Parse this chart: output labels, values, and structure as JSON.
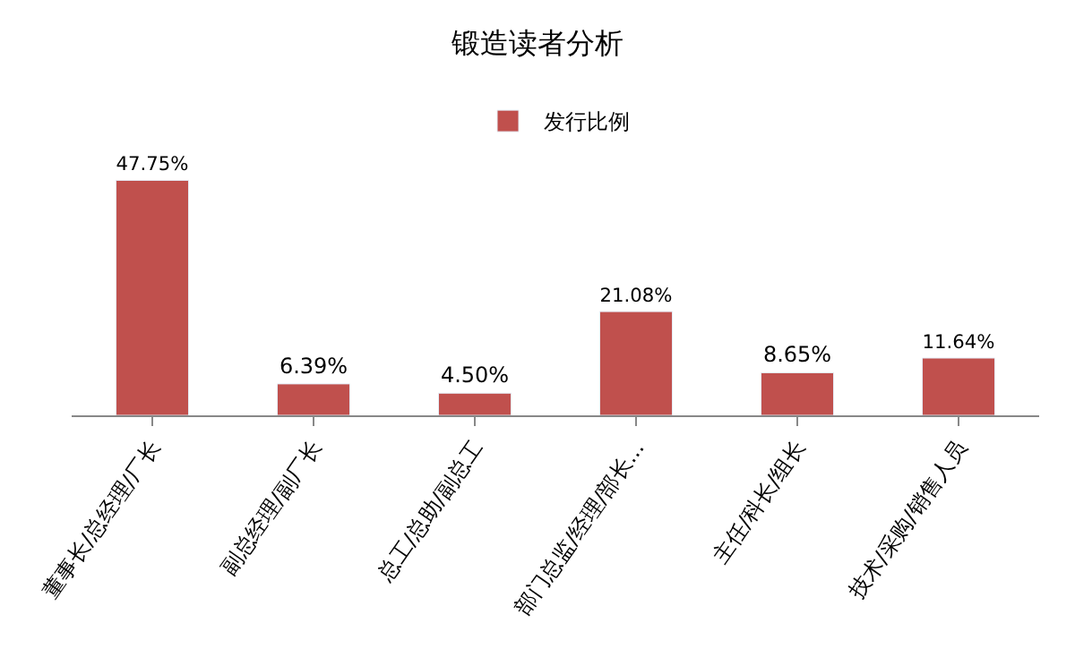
{
  "chart_data": {
    "type": "bar",
    "title": "锻造读者分析",
    "categories": [
      "董事长/总经理/厂长",
      "副总经理/副厂长",
      "总工/总助/副总工",
      "部门总监/经理/部长...",
      "主任/科长/组长",
      "技术/采购/销售人员"
    ],
    "series": [
      {
        "name": "发行比例",
        "color": "#c0504d",
        "values": [
          47.75,
          6.39,
          4.5,
          21.08,
          8.65,
          11.64
        ],
        "value_labels": [
          "47.75%",
          "6.39%",
          "4.50%",
          "21.08%",
          "8.65%",
          "11.64%"
        ]
      }
    ],
    "legend": "top"
  }
}
